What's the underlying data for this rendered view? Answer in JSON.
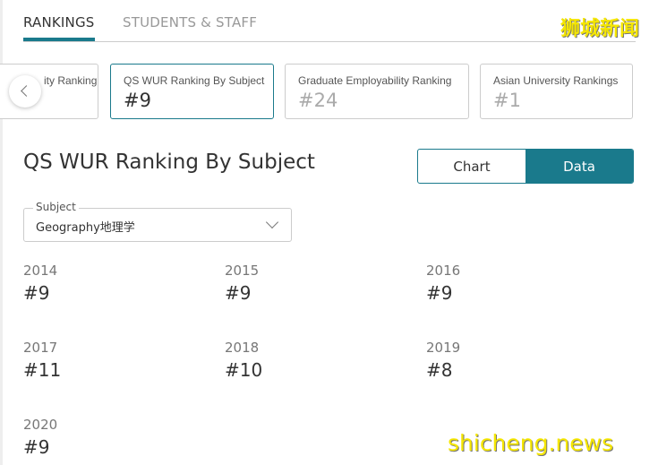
{
  "tabs": [
    "RANKINGS",
    "STUDENTS & STAFF"
  ],
  "watermark_top": "狮城新闻",
  "watermark_bottom": "shicheng.news",
  "cards": [
    {
      "label": "ity Ranking",
      "value": ""
    },
    {
      "label": "QS WUR Ranking By Subject",
      "value": "#9"
    },
    {
      "label": "Graduate Employability Ranking",
      "value": "#24"
    },
    {
      "label": "Asian University Rankings",
      "value": "#1"
    }
  ],
  "section_title": "QS WUR Ranking By Subject",
  "view_toggle": [
    "Chart",
    "Data"
  ],
  "subject": {
    "legend": "Subject",
    "value": "Geography地理学"
  },
  "years": [
    {
      "year": "2014",
      "rank": "#9"
    },
    {
      "year": "2015",
      "rank": "#9"
    },
    {
      "year": "2016",
      "rank": "#9"
    },
    {
      "year": "2017",
      "rank": "#11"
    },
    {
      "year": "2018",
      "rank": "#10"
    },
    {
      "year": "2019",
      "rank": "#8"
    },
    {
      "year": "2020",
      "rank": "#9"
    }
  ],
  "colors": {
    "accent": "#1a7a8c"
  }
}
